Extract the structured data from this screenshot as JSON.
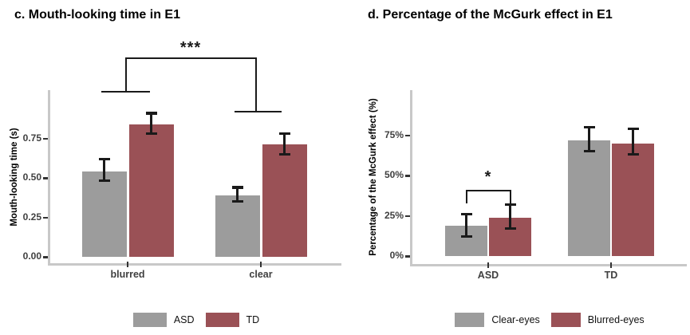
{
  "colors": {
    "bar_gray": "#9C9C9C",
    "bar_red": "#9A5156",
    "axis_line": "#C8C8C8",
    "tick_text": "#404040",
    "error_bar": "#1a1a1a",
    "background": "#FFFFFF"
  },
  "chart_data": [
    {
      "type": "bar",
      "title": "c. Mouth-looking time in E1",
      "xlabel": "",
      "ylabel": "Mouth-looking time (s)",
      "categories": [
        "blurred",
        "clear"
      ],
      "series": [
        {
          "name": "ASD",
          "color": "#9C9C9C",
          "values": [
            0.54,
            0.39
          ],
          "error_low": [
            0.48,
            0.35
          ],
          "error_high": [
            0.62,
            0.44
          ]
        },
        {
          "name": "TD",
          "color": "#9A5156",
          "values": [
            0.84,
            0.71
          ],
          "error_low": [
            0.78,
            0.65
          ],
          "error_high": [
            0.91,
            0.78
          ]
        }
      ],
      "ylim": [
        0,
        1.05
      ],
      "yticks": [
        0,
        0.25,
        0.5,
        0.75
      ],
      "ytick_labels": [
        "0.00",
        "0.25",
        "0.50",
        "0.75"
      ],
      "grid": false,
      "legend_position": "bottom",
      "significance": {
        "label": "***",
        "comparison": "blurred vs clear"
      }
    },
    {
      "type": "bar",
      "title": "d. Percentage of the McGurk effect in E1",
      "xlabel": "",
      "ylabel": "Percentage of the McGurk effect (%)",
      "categories": [
        "ASD",
        "TD"
      ],
      "series": [
        {
          "name": "Clear-eyes",
          "color": "#9C9C9C",
          "values": [
            19,
            72
          ],
          "error_low": [
            12,
            65
          ],
          "error_high": [
            26,
            80
          ]
        },
        {
          "name": "Blurred-eyes",
          "color": "#9A5156",
          "values": [
            24,
            70
          ],
          "error_low": [
            17,
            63
          ],
          "error_high": [
            32,
            79
          ]
        }
      ],
      "ylim": [
        0,
        105
      ],
      "yticks": [
        0,
        25,
        50,
        75
      ],
      "ytick_labels": [
        "0%",
        "25%",
        "50%",
        "75%"
      ],
      "grid": false,
      "legend_position": "bottom",
      "significance": {
        "label": "*",
        "comparison": "Clear-eyes vs Blurred-eyes in ASD"
      }
    }
  ]
}
